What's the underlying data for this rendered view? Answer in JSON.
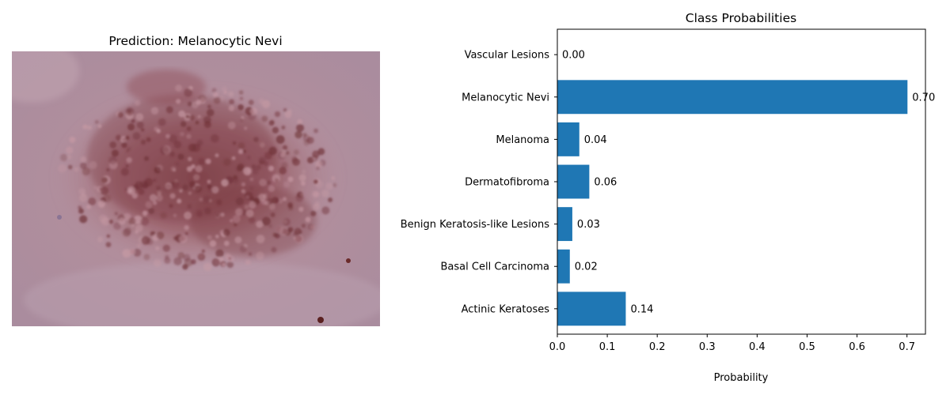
{
  "left_panel": {
    "title": "Prediction: Melanocytic Nevi",
    "image_subject": "skin-lesion-dermoscopy-image"
  },
  "colors": {
    "bar": "#1f77b4",
    "axis": "#000000",
    "skin_base": "#b48a96",
    "lesion": "#7e3e44"
  },
  "chart_data": {
    "type": "bar",
    "orientation": "horizontal",
    "title": "Class Probabilities",
    "xlabel": "Probability",
    "ylabel": "",
    "categories": [
      "Actinic Keratoses",
      "Basal Cell Carcinoma",
      "Benign Keratosis-like Lesions",
      "Dermatofibroma",
      "Melanoma",
      "Melanocytic Nevi",
      "Vascular Lesions"
    ],
    "values": [
      0.137,
      0.025,
      0.03,
      0.064,
      0.044,
      0.701,
      0.0
    ],
    "value_labels": [
      "0.14",
      "0.02",
      "0.03",
      "0.06",
      "0.04",
      "0.70",
      "0.00"
    ],
    "xlim": [
      0,
      0.737
    ],
    "xticks": [
      0.0,
      0.1,
      0.2,
      0.3,
      0.4,
      0.5,
      0.6,
      0.7
    ],
    "xtick_labels": [
      "0.0",
      "0.1",
      "0.2",
      "0.3",
      "0.4",
      "0.5",
      "0.6",
      "0.7"
    ],
    "grid": false,
    "legend": "none"
  }
}
